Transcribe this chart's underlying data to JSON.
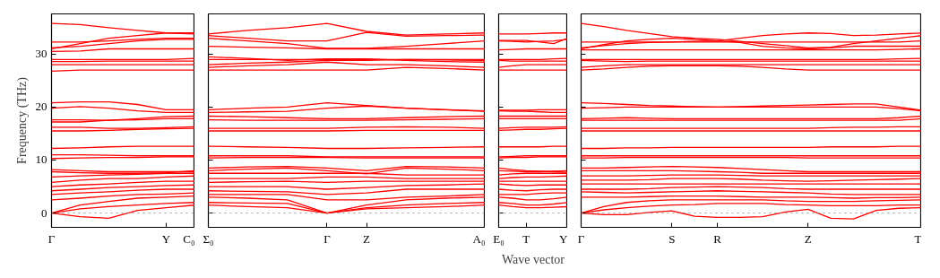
{
  "chart_data": [
    {
      "type": "line",
      "ylabel": "Frequency (THz)",
      "categories": [
        "Γ",
        null,
        null,
        null,
        "Y",
        "C₀"
      ],
      "ylim": [
        -2.7,
        37.6
      ],
      "yticks": [
        0,
        10,
        20,
        30
      ],
      "grid": false,
      "line_style": "solid",
      "marker": "none",
      "ref_lines": [
        {
          "axis": "y",
          "value": 0,
          "color": "#808080",
          "line_style": "dotted"
        }
      ],
      "series": [
        {
          "color": "#ff0000",
          "values": [
            0,
            -0.7,
            -1.0,
            0.5,
            1.0,
            1.5
          ]
        },
        {
          "color": "#ff0000",
          "values": [
            0,
            0.8,
            1.2,
            1.5,
            1.8,
            2.0
          ]
        },
        {
          "color": "#ff0000",
          "values": [
            0,
            1.5,
            2.2,
            2.8,
            3.0,
            3.2
          ]
        },
        {
          "color": "#ff0000",
          "values": [
            2.5,
            2.8,
            3.2,
            3.5,
            3.6,
            3.8
          ]
        },
        {
          "color": "#ff0000",
          "values": [
            3.5,
            3.8,
            4.0,
            4.3,
            4.5,
            4.5
          ]
        },
        {
          "color": "#ff0000",
          "values": [
            4.2,
            4.5,
            4.8,
            5.0,
            5.2,
            5.3
          ]
        },
        {
          "color": "#ff0000",
          "values": [
            5.0,
            5.3,
            5.5,
            5.8,
            6.0,
            6.0
          ]
        },
        {
          "color": "#ff0000",
          "values": [
            5.8,
            6.2,
            6.5,
            6.5,
            6.8,
            7.0
          ]
        },
        {
          "color": "#ff0000",
          "values": [
            6.8,
            7.0,
            7.2,
            7.3,
            7.5,
            7.5
          ]
        },
        {
          "color": "#ff0000",
          "values": [
            7.8,
            7.6,
            7.5,
            7.5,
            7.6,
            8.0
          ]
        },
        {
          "color": "#ff0000",
          "values": [
            8.2,
            8.0,
            7.8,
            7.8,
            7.8,
            7.8
          ]
        },
        {
          "color": "#ff0000",
          "values": [
            10.3,
            10.4,
            10.5,
            10.5,
            10.6,
            10.6
          ]
        },
        {
          "color": "#ff0000",
          "values": [
            11.0,
            11.0,
            10.9,
            10.8,
            10.8,
            10.8
          ]
        },
        {
          "color": "#ff0000",
          "values": [
            12.2,
            12.3,
            12.5,
            12.6,
            12.6,
            12.6
          ]
        },
        {
          "color": "#ff0000",
          "values": [
            15.5,
            15.5,
            15.6,
            15.8,
            15.9,
            16.0
          ]
        },
        {
          "color": "#ff0000",
          "values": [
            16.2,
            16.2,
            16.0,
            16.0,
            16.1,
            16.3
          ]
        },
        {
          "color": "#ff0000",
          "values": [
            17.2,
            17.2,
            17.5,
            17.8,
            18.2,
            18.3
          ]
        },
        {
          "color": "#ff0000",
          "values": [
            17.6,
            17.6,
            17.5,
            17.6,
            17.8,
            17.8
          ]
        },
        {
          "color": "#ff0000",
          "values": [
            19.8,
            20.1,
            19.8,
            19.3,
            19.0,
            19.0
          ]
        },
        {
          "color": "#ff0000",
          "values": [
            20.8,
            21.0,
            21.0,
            20.5,
            19.5,
            19.5
          ]
        },
        {
          "color": "#ff0000",
          "values": [
            26.8,
            27.0,
            27.0,
            27.0,
            27.0,
            27.0
          ]
        },
        {
          "color": "#ff0000",
          "values": [
            28.0,
            28.0,
            28.0,
            28.0,
            28.0,
            28.0
          ]
        },
        {
          "color": "#ff0000",
          "values": [
            28.6,
            28.6,
            28.7,
            28.7,
            28.7,
            28.7
          ]
        },
        {
          "color": "#ff0000",
          "values": [
            29.0,
            29.0,
            29.0,
            29.0,
            29.0,
            29.2
          ]
        },
        {
          "color": "#ff0000",
          "values": [
            30.5,
            30.6,
            31.0,
            31.0,
            31.0,
            31.0
          ]
        },
        {
          "color": "#ff0000",
          "values": [
            31.2,
            31.5,
            32.0,
            32.5,
            32.8,
            32.8
          ]
        },
        {
          "color": "#ff0000",
          "values": [
            32.3,
            32.3,
            32.5,
            32.8,
            33.0,
            33.0
          ]
        },
        {
          "color": "#ff0000",
          "values": [
            31.0,
            32.0,
            33.0,
            33.5,
            34.0,
            34.0
          ]
        },
        {
          "color": "#ff0000",
          "values": [
            35.8,
            35.6,
            35.0,
            34.5,
            34.0,
            33.8
          ]
        }
      ]
    },
    {
      "type": "line",
      "categories": [
        "Σ₀",
        null,
        null,
        "Γ",
        "Z",
        null,
        null,
        "A₀"
      ],
      "ylim": [
        -2.7,
        37.6
      ],
      "yticks": [
        0,
        10,
        20,
        30
      ],
      "tick_labels": "x",
      "grid": false,
      "line_style": "solid",
      "marker": "none",
      "ref_lines": [
        {
          "axis": "y",
          "value": 0,
          "color": "#808080",
          "line_style": "dotted"
        }
      ],
      "series": [
        {
          "color": "#ff0000",
          "values": [
            1.5,
            1.2,
            1.0,
            0,
            0.8,
            1.0,
            1.2,
            1.5
          ]
        },
        {
          "color": "#ff0000",
          "values": [
            2.0,
            1.9,
            1.8,
            0,
            1.0,
            1.5,
            1.8,
            2.0
          ]
        },
        {
          "color": "#ff0000",
          "values": [
            3.0,
            2.8,
            2.5,
            0,
            1.5,
            2.5,
            2.8,
            3.0
          ]
        },
        {
          "color": "#ff0000",
          "values": [
            3.5,
            3.5,
            3.5,
            2.5,
            2.5,
            3.0,
            3.2,
            3.5
          ]
        },
        {
          "color": "#ff0000",
          "values": [
            4.2,
            4.1,
            4.0,
            3.5,
            3.8,
            4.5,
            4.5,
            4.5
          ]
        },
        {
          "color": "#ff0000",
          "values": [
            5.0,
            5.0,
            5.0,
            4.5,
            4.8,
            5.2,
            5.3,
            5.5
          ]
        },
        {
          "color": "#ff0000",
          "values": [
            5.8,
            5.9,
            6.0,
            5.8,
            6.0,
            6.0,
            6.0,
            6.0
          ]
        },
        {
          "color": "#ff0000",
          "values": [
            6.5,
            6.5,
            6.5,
            6.8,
            6.8,
            6.5,
            6.5,
            6.5
          ]
        },
        {
          "color": "#ff0000",
          "values": [
            7.5,
            7.5,
            7.5,
            7.5,
            7.5,
            7.2,
            7.2,
            7.2
          ]
        },
        {
          "color": "#ff0000",
          "values": [
            8.0,
            8.3,
            8.5,
            8.0,
            7.4,
            8.5,
            8.3,
            8.0
          ]
        },
        {
          "color": "#ff0000",
          "values": [
            8.5,
            8.7,
            8.8,
            8.5,
            8.0,
            8.8,
            8.7,
            8.5
          ]
        },
        {
          "color": "#ff0000",
          "values": [
            10.4,
            10.5,
            10.5,
            10.5,
            10.4,
            10.4,
            10.4,
            10.4
          ]
        },
        {
          "color": "#ff0000",
          "values": [
            10.8,
            10.8,
            10.8,
            10.6,
            10.6,
            10.6,
            10.6,
            10.6
          ]
        },
        {
          "color": "#ff0000",
          "values": [
            12.6,
            12.5,
            12.4,
            12.2,
            12.2,
            12.3,
            12.4,
            12.5
          ]
        },
        {
          "color": "#ff0000",
          "values": [
            15.5,
            15.5,
            15.5,
            15.5,
            15.6,
            15.6,
            15.6,
            15.6
          ]
        },
        {
          "color": "#ff0000",
          "values": [
            16.0,
            16.0,
            16.0,
            16.0,
            16.2,
            16.3,
            16.2,
            16.0
          ]
        },
        {
          "color": "#ff0000",
          "values": [
            17.6,
            17.5,
            17.5,
            17.5,
            17.5,
            17.6,
            17.7,
            17.8
          ]
        },
        {
          "color": "#ff0000",
          "values": [
            18.3,
            18.2,
            18.0,
            17.8,
            17.8,
            18.0,
            18.2,
            18.3
          ]
        },
        {
          "color": "#ff0000",
          "values": [
            19.0,
            19.1,
            19.2,
            19.8,
            20.2,
            19.8,
            19.5,
            19.3
          ]
        },
        {
          "color": "#ff0000",
          "values": [
            19.5,
            19.8,
            20.0,
            20.8,
            20.3,
            19.8,
            19.5,
            19.2
          ]
        },
        {
          "color": "#ff0000",
          "values": [
            27.0,
            27.0,
            27.0,
            27.0,
            27.0,
            27.5,
            27.3,
            27.0
          ]
        },
        {
          "color": "#ff0000",
          "values": [
            27.5,
            27.8,
            28.0,
            28.5,
            28.0,
            28.0,
            27.8,
            27.5
          ]
        },
        {
          "color": "#ff0000",
          "values": [
            28.0,
            28.3,
            28.5,
            28.8,
            28.8,
            29.0,
            28.9,
            28.8
          ]
        },
        {
          "color": "#ff0000",
          "values": [
            29.0,
            29.0,
            29.0,
            29.0,
            29.0,
            29.0,
            29.0,
            29.0
          ]
        },
        {
          "color": "#ff0000",
          "values": [
            29.5,
            29.2,
            28.8,
            29.1,
            29.1,
            28.8,
            28.6,
            28.5
          ]
        },
        {
          "color": "#ff0000",
          "values": [
            31.5,
            31.3,
            31.2,
            31.0,
            31.0,
            31.0,
            31.0,
            31.0
          ]
        },
        {
          "color": "#ff0000",
          "values": [
            33.0,
            32.5,
            32.0,
            31.1,
            31.1,
            31.5,
            32.0,
            32.5
          ]
        },
        {
          "color": "#ff0000",
          "values": [
            33.5,
            33.0,
            32.5,
            32.5,
            34.1,
            33.4,
            33.5,
            33.6
          ]
        },
        {
          "color": "#ff0000",
          "values": [
            33.8,
            34.5,
            35.0,
            35.8,
            34.3,
            33.6,
            33.8,
            34.0
          ]
        }
      ]
    },
    {
      "type": "line",
      "xlabel": "Wave vector",
      "categories": [
        "E₀",
        null,
        "T",
        null,
        null,
        "Y"
      ],
      "ylim": [
        -2.7,
        37.6
      ],
      "yticks": [
        0,
        10,
        20,
        30
      ],
      "tick_labels": "x",
      "grid": false,
      "line_style": "solid",
      "marker": "none",
      "ref_lines": [
        {
          "axis": "y",
          "value": 0,
          "color": "#808080",
          "line_style": "dotted"
        }
      ],
      "series": [
        {
          "color": "#ff0000",
          "values": [
            1.5,
            1.2,
            1.0,
            1.0,
            1.1,
            1.2
          ]
        },
        {
          "color": "#ff0000",
          "values": [
            2.0,
            1.8,
            1.5,
            1.5,
            1.7,
            2.0
          ]
        },
        {
          "color": "#ff0000",
          "values": [
            3.0,
            2.8,
            2.5,
            2.5,
            2.7,
            3.0
          ]
        },
        {
          "color": "#ff0000",
          "values": [
            3.5,
            3.5,
            3.5,
            3.7,
            3.8,
            3.8
          ]
        },
        {
          "color": "#ff0000",
          "values": [
            4.5,
            4.3,
            4.2,
            4.4,
            4.5,
            4.5
          ]
        },
        {
          "color": "#ff0000",
          "values": [
            5.5,
            5.3,
            5.2,
            5.3,
            5.3,
            5.3
          ]
        },
        {
          "color": "#ff0000",
          "values": [
            6.0,
            6.0,
            6.0,
            6.0,
            6.0,
            6.0
          ]
        },
        {
          "color": "#ff0000",
          "values": [
            6.5,
            6.7,
            6.8,
            6.8,
            6.9,
            7.0
          ]
        },
        {
          "color": "#ff0000",
          "values": [
            7.2,
            7.4,
            7.5,
            7.5,
            7.5,
            7.5
          ]
        },
        {
          "color": "#ff0000",
          "values": [
            8.0,
            7.9,
            7.8,
            7.8,
            7.9,
            8.0
          ]
        },
        {
          "color": "#ff0000",
          "values": [
            8.5,
            8.2,
            8.0,
            7.9,
            7.8,
            7.7
          ]
        },
        {
          "color": "#ff0000",
          "values": [
            10.4,
            10.5,
            10.5,
            10.6,
            10.6,
            10.6
          ]
        },
        {
          "color": "#ff0000",
          "values": [
            10.6,
            10.7,
            10.8,
            10.8,
            10.8,
            10.8
          ]
        },
        {
          "color": "#ff0000",
          "values": [
            12.5,
            12.5,
            12.5,
            12.5,
            12.6,
            12.6
          ]
        },
        {
          "color": "#ff0000",
          "values": [
            15.6,
            15.7,
            15.8,
            15.8,
            15.9,
            16.0
          ]
        },
        {
          "color": "#ff0000",
          "values": [
            16.0,
            16.1,
            16.2,
            16.2,
            16.2,
            16.3
          ]
        },
        {
          "color": "#ff0000",
          "values": [
            17.8,
            17.8,
            17.8,
            17.8,
            17.8,
            17.8
          ]
        },
        {
          "color": "#ff0000",
          "values": [
            18.3,
            18.3,
            18.3,
            18.3,
            18.3,
            18.3
          ]
        },
        {
          "color": "#ff0000",
          "values": [
            19.3,
            19.2,
            19.2,
            19.1,
            19.0,
            19.0
          ]
        },
        {
          "color": "#ff0000",
          "values": [
            19.4,
            19.4,
            19.4,
            19.5,
            19.5,
            19.5
          ]
        },
        {
          "color": "#ff0000",
          "values": [
            27.0,
            27.0,
            27.0,
            27.0,
            27.0,
            27.0
          ]
        },
        {
          "color": "#ff0000",
          "values": [
            27.5,
            27.8,
            28.0,
            28.0,
            28.0,
            28.0
          ]
        },
        {
          "color": "#ff0000",
          "values": [
            28.8,
            28.7,
            28.7,
            28.7,
            28.7,
            28.7
          ]
        },
        {
          "color": "#ff0000",
          "values": [
            29.0,
            29.0,
            29.0,
            29.0,
            29.1,
            29.2
          ]
        },
        {
          "color": "#ff0000",
          "values": [
            30.8,
            30.9,
            31.0,
            31.0,
            31.0,
            31.0
          ]
        },
        {
          "color": "#ff0000",
          "values": [
            32.5,
            32.4,
            32.3,
            32.4,
            32.5,
            32.8
          ]
        },
        {
          "color": "#ff0000",
          "values": [
            32.6,
            32.6,
            32.6,
            32.3,
            32.0,
            33.0
          ]
        },
        {
          "color": "#ff0000",
          "values": [
            33.8,
            33.8,
            33.8,
            33.9,
            34.0,
            34.0
          ]
        }
      ]
    },
    {
      "type": "line",
      "categories": [
        "Γ",
        null,
        null,
        null,
        "S",
        null,
        "R",
        null,
        null,
        null,
        "Z",
        null,
        null,
        null,
        null,
        "T"
      ],
      "ylim": [
        -2.7,
        37.6
      ],
      "yticks": [
        0,
        10,
        20,
        30
      ],
      "tick_labels": "x",
      "grid": false,
      "line_style": "solid",
      "marker": "none",
      "ref_lines": [
        {
          "axis": "y",
          "value": 0,
          "color": "#808080",
          "line_style": "dotted"
        }
      ],
      "series": [
        {
          "color": "#ff0000",
          "values": [
            0,
            -0.3,
            -0.3,
            0.1,
            0.4,
            -0.6,
            -0.8,
            -0.8,
            -0.7,
            0.2,
            0.7,
            -1.0,
            -1.1,
            0.5,
            0.9,
            1.0
          ]
        },
        {
          "color": "#ff0000",
          "values": [
            0,
            0.6,
            1.0,
            1.3,
            1.5,
            1.6,
            1.8,
            1.8,
            1.8,
            1.6,
            1.5,
            1.4,
            1.4,
            1.4,
            1.5,
            1.5
          ]
        },
        {
          "color": "#ff0000",
          "values": [
            0,
            1.2,
            2.0,
            2.3,
            2.5,
            2.5,
            2.5,
            2.5,
            2.5,
            2.3,
            2.2,
            2.2,
            2.2,
            2.3,
            2.4,
            2.5
          ]
        },
        {
          "color": "#ff0000",
          "values": [
            3.0,
            3.0,
            3.0,
            3.1,
            3.2,
            3.2,
            3.2,
            3.1,
            3.0,
            3.0,
            3.0,
            2.9,
            2.8,
            2.9,
            2.9,
            3.0
          ]
        },
        {
          "color": "#ff0000",
          "values": [
            4.0,
            3.9,
            3.8,
            3.9,
            4.0,
            4.1,
            4.2,
            4.1,
            4.0,
            3.9,
            3.8,
            3.6,
            3.5,
            3.5,
            3.5,
            3.5
          ]
        },
        {
          "color": "#ff0000",
          "values": [
            4.5,
            4.5,
            4.5,
            4.6,
            4.8,
            4.9,
            5.0,
            4.9,
            4.8,
            4.6,
            4.5,
            4.5,
            4.5,
            4.5,
            4.5,
            4.5
          ]
        },
        {
          "color": "#ff0000",
          "values": [
            5.5,
            5.5,
            5.5,
            5.5,
            5.5,
            5.5,
            5.5,
            5.5,
            5.5,
            5.5,
            5.5,
            5.5,
            5.5,
            5.5,
            5.5,
            5.5
          ]
        },
        {
          "color": "#ff0000",
          "values": [
            6.2,
            6.2,
            6.2,
            6.3,
            6.5,
            6.5,
            6.5,
            6.4,
            6.2,
            6.1,
            6.0,
            6.1,
            6.2,
            6.3,
            6.4,
            6.5
          ]
        },
        {
          "color": "#ff0000",
          "values": [
            7.0,
            7.0,
            7.0,
            7.1,
            7.2,
            7.2,
            7.2,
            7.1,
            7.0,
            7.0,
            7.0,
            7.0,
            7.0,
            7.0,
            7.0,
            7.0
          ]
        },
        {
          "color": "#ff0000",
          "values": [
            8.0,
            8.0,
            8.0,
            8.0,
            8.0,
            7.9,
            7.8,
            7.7,
            7.5,
            7.5,
            7.5,
            7.5,
            7.5,
            7.5,
            7.5,
            7.5
          ]
        },
        {
          "color": "#ff0000",
          "values": [
            8.5,
            8.5,
            8.6,
            8.7,
            8.8,
            8.7,
            8.6,
            8.4,
            8.2,
            8.0,
            7.8,
            7.8,
            7.8,
            7.8,
            7.8,
            7.8
          ]
        },
        {
          "color": "#ff0000",
          "values": [
            10.4,
            10.4,
            10.5,
            10.5,
            10.5,
            10.5,
            10.5,
            10.5,
            10.5,
            10.5,
            10.4,
            10.4,
            10.4,
            10.4,
            10.4,
            10.4
          ]
        },
        {
          "color": "#ff0000",
          "values": [
            10.8,
            10.8,
            10.8,
            10.8,
            10.8,
            10.8,
            10.8,
            10.8,
            10.8,
            10.8,
            10.8,
            10.8,
            10.8,
            10.8,
            10.8,
            10.8
          ]
        },
        {
          "color": "#ff0000",
          "values": [
            12.2,
            12.2,
            12.3,
            12.3,
            12.4,
            12.4,
            12.4,
            12.4,
            12.4,
            12.4,
            12.4,
            12.5,
            12.5,
            12.5,
            12.6,
            12.6
          ]
        },
        {
          "color": "#ff0000",
          "values": [
            15.5,
            15.5,
            15.5,
            15.5,
            15.5,
            15.5,
            15.5,
            15.5,
            15.5,
            15.5,
            15.5,
            15.5,
            15.5,
            15.5,
            15.5,
            15.5
          ]
        },
        {
          "color": "#ff0000",
          "values": [
            16.0,
            16.0,
            16.0,
            16.0,
            16.0,
            16.0,
            16.0,
            16.0,
            16.0,
            16.0,
            16.0,
            16.1,
            16.2,
            16.2,
            16.3,
            16.3
          ]
        },
        {
          "color": "#ff0000",
          "values": [
            17.5,
            17.5,
            17.5,
            17.5,
            17.5,
            17.5,
            17.5,
            17.5,
            17.5,
            17.5,
            17.5,
            17.5,
            17.5,
            17.5,
            17.5,
            17.8
          ]
        },
        {
          "color": "#ff0000",
          "values": [
            17.8,
            17.9,
            18.0,
            17.9,
            17.8,
            17.8,
            17.8,
            17.8,
            17.8,
            17.8,
            17.8,
            17.8,
            17.8,
            17.8,
            18.0,
            18.3
          ]
        },
        {
          "color": "#ff0000",
          "values": [
            19.8,
            19.9,
            20.0,
            20.0,
            20.0,
            20.0,
            20.0,
            20.0,
            20.0,
            20.0,
            20.0,
            20.0,
            20.0,
            20.0,
            19.7,
            19.3
          ]
        },
        {
          "color": "#ff0000",
          "values": [
            20.8,
            20.7,
            20.5,
            20.3,
            20.2,
            20.1,
            20.0,
            20.1,
            20.2,
            20.3,
            20.4,
            20.5,
            20.6,
            20.6,
            20.0,
            19.4
          ]
        },
        {
          "color": "#ff0000",
          "values": [
            27.0,
            27.2,
            27.5,
            27.7,
            27.8,
            27.8,
            27.8,
            27.7,
            27.5,
            27.2,
            27.0,
            27.0,
            27.0,
            27.0,
            27.0,
            27.0
          ]
        },
        {
          "color": "#ff0000",
          "values": [
            27.5,
            27.8,
            28.0,
            28.0,
            28.0,
            28.0,
            28.0,
            28.0,
            28.0,
            28.0,
            28.0,
            28.0,
            28.0,
            28.0,
            28.0,
            28.0
          ]
        },
        {
          "color": "#ff0000",
          "values": [
            28.8,
            28.7,
            28.6,
            28.7,
            28.7,
            28.7,
            28.7,
            28.7,
            28.7,
            28.7,
            28.7,
            28.7,
            28.7,
            28.7,
            28.7,
            28.7
          ]
        },
        {
          "color": "#ff0000",
          "values": [
            29.0,
            29.0,
            29.0,
            29.0,
            29.0,
            29.0,
            29.0,
            29.0,
            29.0,
            29.0,
            29.0,
            29.0,
            29.0,
            29.0,
            29.1,
            29.2
          ]
        },
        {
          "color": "#ff0000",
          "values": [
            30.8,
            30.8,
            30.8,
            30.8,
            30.8,
            30.8,
            30.8,
            30.8,
            30.8,
            30.8,
            30.8,
            30.8,
            30.8,
            30.8,
            30.9,
            31.0
          ]
        },
        {
          "color": "#ff0000",
          "values": [
            31.2,
            31.6,
            32.0,
            32.2,
            32.3,
            32.4,
            32.5,
            32.2,
            31.5,
            31.2,
            31.0,
            31.2,
            31.5,
            31.5,
            31.5,
            31.5
          ]
        },
        {
          "color": "#ff0000",
          "values": [
            32.3,
            32.3,
            32.3,
            32.3,
            32.3,
            32.3,
            32.3,
            32.3,
            32.3,
            32.3,
            32.3,
            32.3,
            32.3,
            32.3,
            32.3,
            32.5
          ]
        },
        {
          "color": "#ff0000",
          "values": [
            31.0,
            31.8,
            32.5,
            32.8,
            33.0,
            32.8,
            32.5,
            33.0,
            33.5,
            33.8,
            34.0,
            33.9,
            33.5,
            33.6,
            33.8,
            34.0
          ]
        },
        {
          "color": "#ff0000",
          "values": [
            35.8,
            35.2,
            34.5,
            33.9,
            33.3,
            33.0,
            32.8,
            32.4,
            32.0,
            31.6,
            31.2,
            31.3,
            32.0,
            32.5,
            33.0,
            33.5
          ]
        }
      ]
    }
  ]
}
